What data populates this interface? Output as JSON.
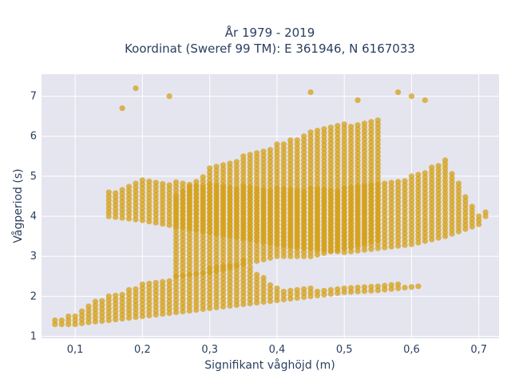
{
  "chart_data": {
    "type": "scatter",
    "title_lines": [
      "År 1979 - 2019",
      "Koordinat (Sweref 99 TM): E 361946, N 6167033"
    ],
    "xlabel": "Signifikant våghöjd (m)",
    "ylabel": "Vågperiod (s)",
    "xlim": [
      0.05,
      0.73
    ],
    "ylim": [
      0.95,
      7.55
    ],
    "x_ticks": [
      0.1,
      0.2,
      0.3,
      0.4,
      0.5,
      0.6,
      0.7
    ],
    "x_tick_labels": [
      "0,1",
      "0,2",
      "0,3",
      "0,4",
      "0,5",
      "0,6",
      "0,7"
    ],
    "y_ticks": [
      1,
      2,
      3,
      4,
      5,
      6,
      7
    ],
    "y_tick_labels": [
      "1",
      "2",
      "3",
      "4",
      "5",
      "6",
      "7"
    ],
    "grid": true,
    "marker_color": "#d4a017",
    "plot_bg_color": "#e5e5f0",
    "series": [
      {
        "band": "lower-branch",
        "x": [
          0.07,
          0.08,
          0.1,
          0.12,
          0.15,
          0.2,
          0.25,
          0.3,
          0.35,
          0.4,
          0.45,
          0.5,
          0.55,
          0.61
        ],
        "y_min": [
          1.3,
          1.3,
          1.3,
          1.35,
          1.4,
          1.5,
          1.6,
          1.7,
          1.8,
          1.9,
          2.0,
          2.1,
          2.15,
          2.25
        ],
        "y_max": [
          1.4,
          1.45,
          1.55,
          1.8,
          2.0,
          2.3,
          2.5,
          2.7,
          2.9,
          2.2,
          2.2,
          2.25,
          2.3,
          2.3
        ]
      },
      {
        "band": "main-cloud",
        "x": [
          0.25,
          0.3,
          0.35,
          0.4,
          0.45,
          0.5,
          0.55
        ],
        "y_min": [
          2.5,
          2.6,
          2.8,
          3.0,
          3.0,
          3.2,
          3.4
        ],
        "y_max": [
          4.5,
          5.2,
          5.5,
          5.8,
          6.1,
          6.3,
          6.4
        ]
      },
      {
        "band": "swell-branch",
        "x": [
          0.15,
          0.2,
          0.3,
          0.4,
          0.5,
          0.6,
          0.65,
          0.7,
          0.71
        ],
        "y_min": [
          4.0,
          3.9,
          3.6,
          3.3,
          3.1,
          3.3,
          3.5,
          3.8,
          4.0
        ],
        "y_max": [
          4.6,
          4.9,
          4.8,
          4.7,
          4.7,
          5.0,
          5.4,
          4.0,
          4.1
        ]
      },
      {
        "band": "upper-outliers",
        "x": [
          0.17,
          0.19,
          0.24,
          0.45,
          0.52,
          0.58,
          0.6,
          0.62
        ],
        "y": [
          6.7,
          7.2,
          7.0,
          7.1,
          6.9,
          7.1,
          7.0,
          6.9
        ]
      }
    ]
  }
}
